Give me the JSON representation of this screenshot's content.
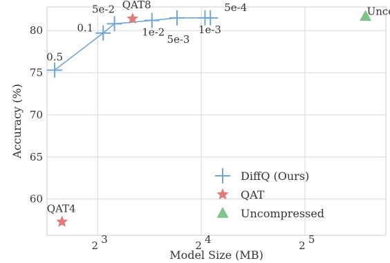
{
  "chart_data": {
    "type": "scatter",
    "title": "",
    "xlabel": "Model Size (MB)",
    "ylabel": "Accuracy (%)",
    "x_scale": "log2",
    "xlim": [
      5.7,
      55
    ],
    "ylim": [
      55.7,
      82.8
    ],
    "x_ticks": [
      8,
      16,
      32
    ],
    "x_tick_labels": [
      {
        "base": "2",
        "exp": "3"
      },
      {
        "base": "2",
        "exp": "4"
      },
      {
        "base": "2",
        "exp": "5"
      }
    ],
    "y_ticks": [
      60,
      65,
      70,
      75,
      80
    ],
    "grid": true,
    "legend_position": "lower-right",
    "series": [
      {
        "name": "DiffQ (Ours)",
        "marker": "plus",
        "color": "#6fa6d3",
        "connected": true,
        "points": [
          {
            "x": 6.0,
            "y": 75.3,
            "label": "0.5"
          },
          {
            "x": 8.3,
            "y": 79.7,
            "label": "0.1"
          },
          {
            "x": 8.95,
            "y": 80.8,
            "label": "5e-2"
          },
          {
            "x": 11.5,
            "y": 81.2,
            "label": "1e-2"
          },
          {
            "x": 13.6,
            "y": 81.5,
            "label": "5e-3"
          },
          {
            "x": 16.4,
            "y": 81.5,
            "label": "1e-3"
          },
          {
            "x": 17.0,
            "y": 81.5,
            "label": "5e-4"
          }
        ]
      },
      {
        "name": "QAT",
        "marker": "star",
        "color": "#e07b7b",
        "connected": false,
        "points": [
          {
            "x": 10.1,
            "y": 81.4,
            "label": "QAT8"
          },
          {
            "x": 6.3,
            "y": 57.3,
            "label": "QAT4"
          }
        ]
      },
      {
        "name": "Uncompressed",
        "marker": "triangle",
        "color": "#7cc48a",
        "connected": false,
        "points": [
          {
            "x": 48.0,
            "y": 81.7,
            "label": "Uncomp"
          }
        ]
      }
    ]
  }
}
